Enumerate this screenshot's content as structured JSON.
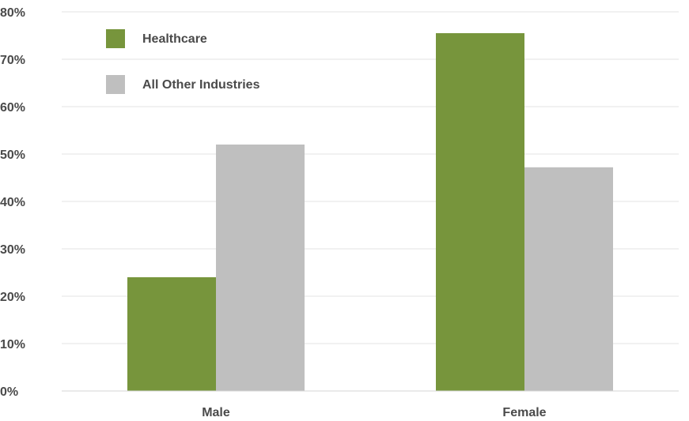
{
  "chart_data": {
    "type": "bar",
    "categories": [
      "Male",
      "Female"
    ],
    "series": [
      {
        "name": "Healthcare",
        "values": [
          24,
          75.5
        ],
        "color": "#77953c"
      },
      {
        "name": "All Other Industries",
        "values": [
          52,
          47.2
        ],
        "color": "#bfbfbf"
      }
    ],
    "yticks": [
      "0%",
      "10%",
      "20%",
      "30%",
      "40%",
      "50%",
      "60%",
      "70%",
      "80%"
    ],
    "ylim": [
      0,
      80
    ],
    "y_unit": "%",
    "grid": true,
    "legend_position": "top-left",
    "title": "",
    "xlabel": "",
    "ylabel": ""
  }
}
